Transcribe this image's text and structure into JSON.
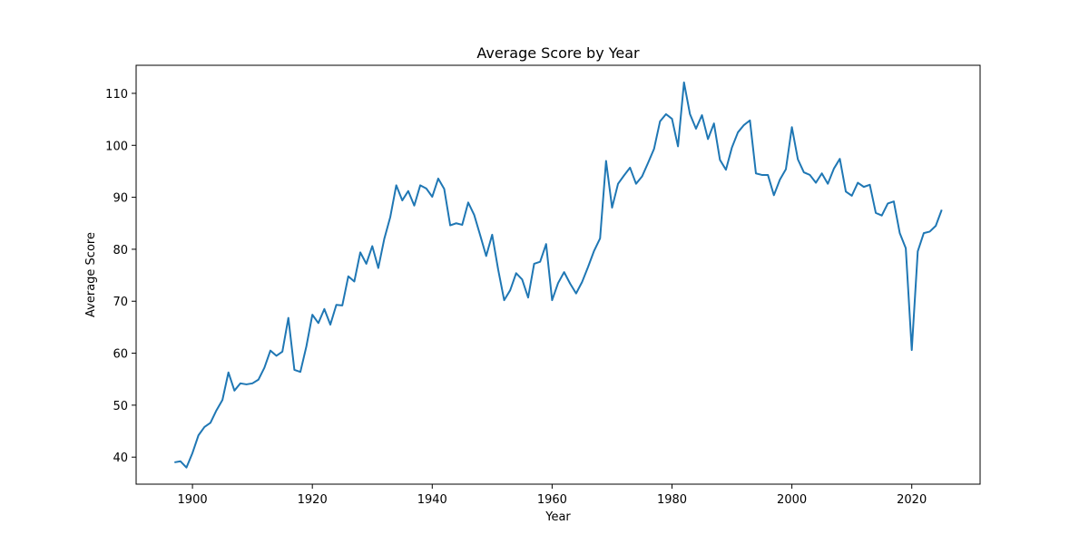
{
  "chart_data": {
    "type": "line",
    "title": "Average Score by Year",
    "xlabel": "Year",
    "ylabel": "Average Score",
    "xlim": [
      1890.6,
      2031.4
    ],
    "ylim": [
      34.8,
      115.4
    ],
    "x_ticks": [
      1900,
      1920,
      1940,
      1960,
      1980,
      2000,
      2020
    ],
    "y_ticks": [
      40,
      50,
      60,
      70,
      80,
      90,
      100,
      110
    ],
    "grid": false,
    "legend": "none",
    "color": "#1f77b4",
    "series": [
      {
        "x": [
          1897,
          1898,
          1899,
          1900,
          1901,
          1902,
          1903,
          1904,
          1905,
          1906,
          1907,
          1908,
          1909,
          1910,
          1911,
          1912,
          1913,
          1914,
          1915,
          1916,
          1917,
          1918,
          1919,
          1920,
          1921,
          1922,
          1923,
          1924,
          1925,
          1926,
          1927,
          1928,
          1929,
          1930,
          1931,
          1932,
          1933,
          1934,
          1935,
          1936,
          1937,
          1938,
          1939,
          1940,
          1941,
          1942,
          1943,
          1944,
          1945,
          1946,
          1947,
          1948,
          1949,
          1950,
          1951,
          1952,
          1953,
          1954,
          1955,
          1956,
          1957,
          1958,
          1959,
          1960,
          1961,
          1962,
          1963,
          1964,
          1965,
          1966,
          1967,
          1968,
          1969,
          1970,
          1971,
          1972,
          1973,
          1974,
          1975,
          1976,
          1977,
          1978,
          1979,
          1980,
          1981,
          1982,
          1983,
          1984,
          1985,
          1986,
          1987,
          1988,
          1989,
          1990,
          1991,
          1992,
          1993,
          1994,
          1995,
          1996,
          1997,
          1998,
          1999,
          2000,
          2001,
          2002,
          2003,
          2004,
          2005,
          2006,
          2007,
          2008,
          2009,
          2010,
          2011,
          2012,
          2013,
          2014,
          2015,
          2016,
          2017,
          2018,
          2019,
          2020,
          2021,
          2022,
          2023,
          2024,
          2025
        ],
        "y": [
          39.0,
          39.2,
          38.0,
          40.8,
          44.2,
          45.8,
          46.6,
          49.0,
          51.0,
          56.3,
          52.8,
          54.2,
          54.0,
          54.2,
          54.9,
          57.2,
          60.5,
          59.5,
          60.3,
          66.8,
          56.8,
          56.4,
          61.3,
          67.4,
          65.8,
          68.5,
          65.5,
          69.3,
          69.2,
          74.8,
          73.8,
          79.4,
          77.2,
          80.6,
          76.4,
          82.0,
          86.2,
          92.3,
          89.4,
          91.2,
          88.4,
          92.3,
          91.7,
          90.1,
          93.6,
          91.6,
          84.6,
          85.0,
          84.7,
          89.0,
          86.6,
          82.7,
          78.7,
          82.8,
          76.1,
          70.2,
          72.1,
          75.4,
          74.2,
          70.7,
          77.2,
          77.6,
          81.0,
          70.2,
          73.5,
          75.6,
          73.4,
          71.5,
          73.7,
          76.6,
          79.7,
          82.1,
          97.0,
          88.0,
          92.6,
          94.2,
          95.7,
          92.6,
          94.0,
          96.6,
          99.3,
          104.6,
          106.0,
          105.1,
          99.8,
          112.1,
          106.0,
          103.2,
          105.8,
          101.2,
          104.2,
          97.2,
          95.3,
          99.6,
          102.5,
          103.9,
          104.8,
          94.6,
          94.3,
          94.3,
          90.4,
          93.4,
          95.4,
          103.5,
          97.3,
          94.8,
          94.3,
          92.8,
          94.6,
          92.6,
          95.5,
          97.4,
          91.1,
          90.3,
          92.8,
          92.0,
          92.4,
          87.0,
          86.5,
          88.8,
          89.2,
          83.1,
          80.2,
          60.6,
          79.6,
          83.1,
          83.4,
          84.5,
          87.6
        ]
      }
    ]
  }
}
